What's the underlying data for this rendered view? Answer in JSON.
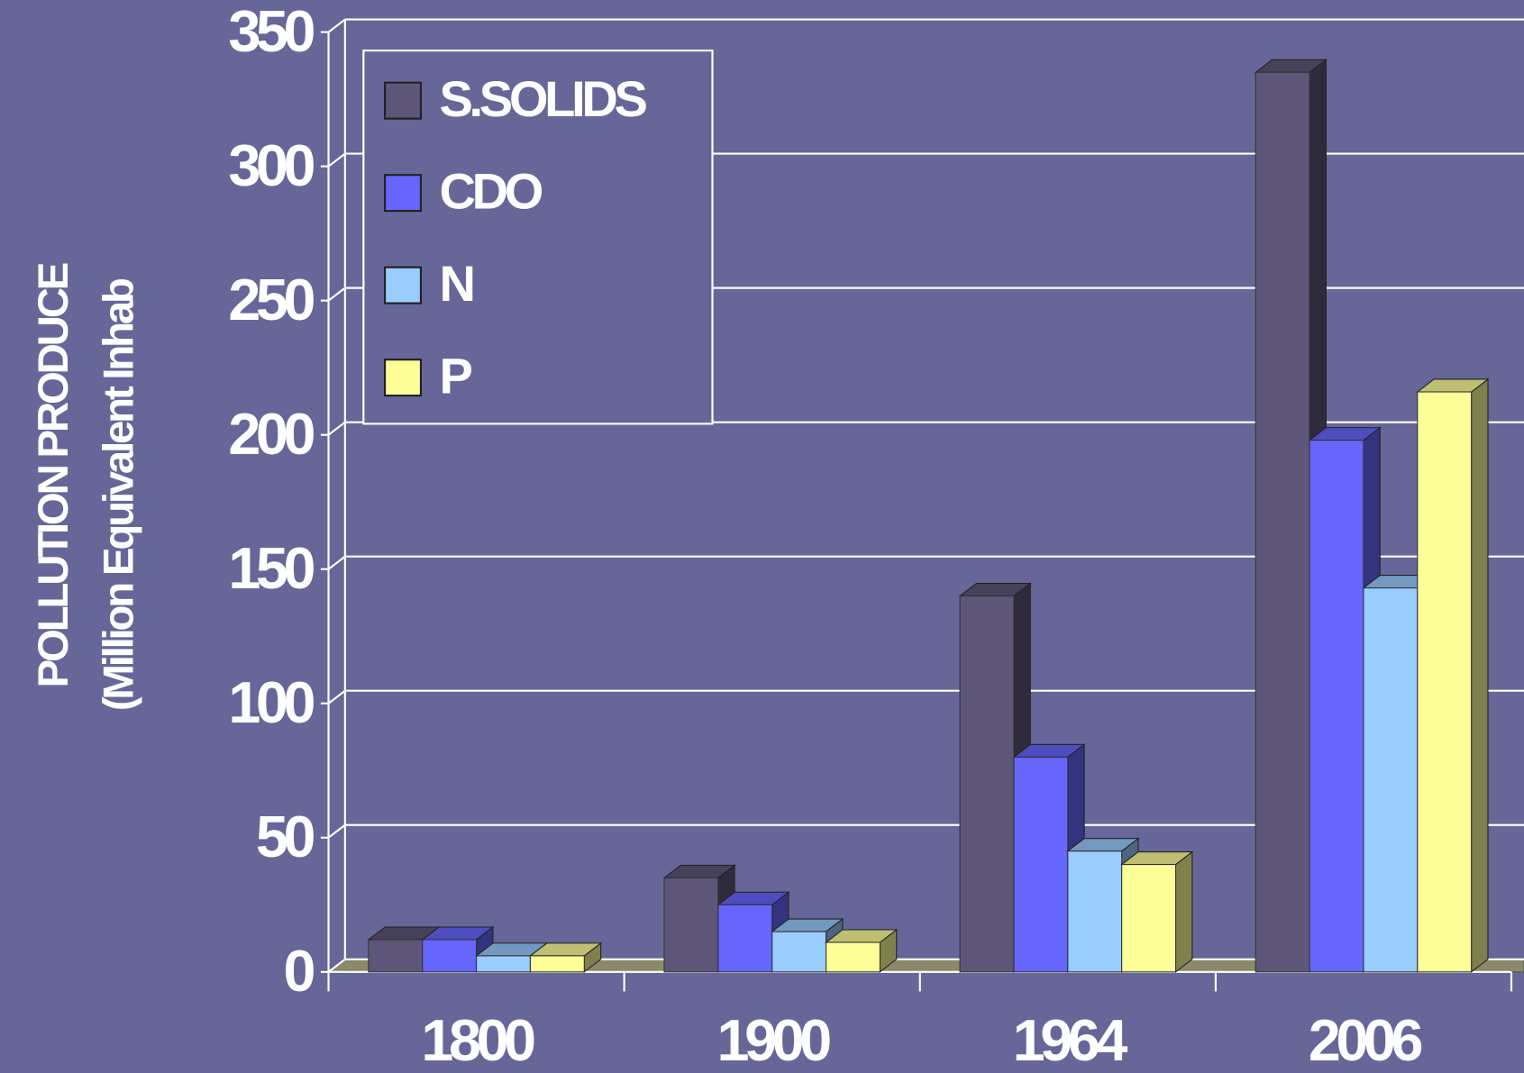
{
  "chart_data": {
    "type": "bar3d",
    "ylabel": [
      "POLLUTION PRODUCE",
      "(Million Equivalent Inhab"
    ],
    "categories": [
      "1800",
      "1900",
      "1964",
      "2006"
    ],
    "series": [
      {
        "name": "S.SOLIDS",
        "color": "#5e5679",
        "values": [
          12,
          35,
          140,
          335
        ]
      },
      {
        "name": "CDO",
        "color": "#6666ff",
        "values": [
          12,
          25,
          80,
          198
        ]
      },
      {
        "name": "N",
        "color": "#99ccff",
        "values": [
          6,
          15,
          45,
          143
        ]
      },
      {
        "name": "P",
        "color": "#ffff99",
        "values": [
          6,
          11,
          40,
          216
        ]
      }
    ],
    "ylim": [
      0,
      350
    ],
    "yticks": [
      0,
      50,
      100,
      150,
      200,
      250,
      300,
      350
    ],
    "grid": true,
    "legend": "upper left"
  }
}
